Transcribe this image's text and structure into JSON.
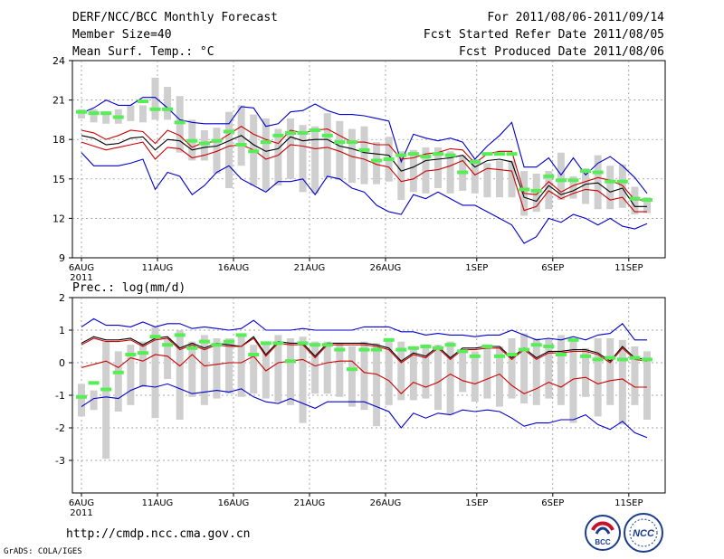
{
  "header": {
    "title": "DERF/NCC/BCC Monthly Forecast",
    "member_size": "Member Size=40",
    "variable1": "Mean Surf. Temp.: °C",
    "period": "For 2011/08/06-2011/09/14",
    "fcst_started": "Fcst Started Refer Date 2011/08/05",
    "fcst_produced": "Fcst Produced Date 2011/08/06"
  },
  "footer": {
    "url": "http://cmdp.ncc.cma.gov.cn",
    "grads": "GrADS: COLA/IGES",
    "logo1": "BCC",
    "logo2": "NCC"
  },
  "chart_data": [
    {
      "type": "line",
      "title": "Mean Surf. Temp.: °C",
      "x_tick_labels": [
        "6AUG",
        "11AUG",
        "16AUG",
        "21AUG",
        "26AUG",
        "1SEP",
        "6SEP",
        "11SEP"
      ],
      "x_tick_days": [
        0,
        5,
        10,
        15,
        20,
        26,
        31,
        36
      ],
      "year_label": "2011",
      "ylim": [
        9,
        24
      ],
      "y_ticks": [
        9,
        12,
        15,
        18,
        21,
        24
      ],
      "series": [
        {
          "name": "ensemble max",
          "color": "#0000cc",
          "values": [
            17.0,
            16.0,
            16.0,
            16.0,
            16.2,
            16.5,
            14.2,
            15.5,
            15.2,
            13.8,
            14.5,
            15.5,
            16.0,
            15.0,
            14.5,
            14.0,
            14.8,
            14.8,
            15.0,
            13.8,
            15.2,
            15.0,
            14.3,
            14.0,
            13.0,
            12.5,
            12.3,
            13.8,
            13.5,
            14.0,
            13.5,
            13.0,
            13.0,
            12.5,
            12.0,
            11.5,
            10.1,
            10.6,
            12.0,
            11.7,
            12.3,
            12.0,
            11.5,
            12.0,
            11.4,
            11.2,
            11.6
          ]
        },
        {
          "name": "ensemble min",
          "color": "#0000cc",
          "values": [
            20.0,
            20.4,
            21.0,
            20.6,
            20.6,
            21.2,
            21.2,
            20.4,
            19.5,
            19.3,
            19.2,
            19.2,
            19.2,
            20.5,
            20.4,
            19.0,
            19.2,
            20.1,
            20.2,
            20.7,
            20.2,
            19.9,
            19.9,
            19.8,
            19.6,
            19.4,
            16.3,
            18.4,
            18.1,
            17.9,
            18.1,
            17.8,
            16.5,
            17.5,
            18.3,
            19.3,
            15.9,
            15.9,
            16.6,
            15.3,
            16.6,
            15.3,
            16.2,
            16.7,
            16.0,
            15.1,
            13.9
          ]
        },
        {
          "name": "ensemble mean",
          "color": "#000000",
          "values": [
            18.3,
            18.1,
            17.6,
            17.7,
            18.1,
            18.2,
            17.2,
            18.0,
            17.9,
            17.2,
            17.4,
            17.5,
            17.9,
            18.3,
            17.6,
            17.1,
            17.3,
            18.2,
            17.9,
            18.0,
            18.0,
            17.5,
            17.3,
            17.0,
            16.9,
            16.8,
            15.6,
            15.9,
            16.4,
            16.5,
            16.6,
            16.8,
            15.9,
            16.4,
            16.5,
            16.3,
            13.6,
            13.3,
            14.5,
            13.8,
            14.1,
            14.6,
            14.7,
            14.0,
            14.3,
            12.9,
            12.9
          ]
        },
        {
          "name": "upper",
          "color": "#cc0000",
          "values": [
            18.7,
            18.5,
            18.0,
            18.3,
            18.7,
            18.6,
            17.7,
            18.7,
            18.3,
            17.4,
            17.8,
            17.8,
            18.4,
            19.0,
            18.4,
            18.0,
            17.7,
            18.7,
            18.5,
            18.7,
            18.8,
            18.3,
            17.8,
            17.8,
            17.6,
            17.6,
            16.5,
            16.6,
            16.9,
            17.0,
            17.3,
            17.2,
            16.2,
            16.9,
            17.1,
            17.1,
            13.9,
            13.8,
            14.8,
            14.0,
            14.5,
            14.8,
            15.1,
            14.9,
            14.5,
            13.4,
            13.4
          ]
        },
        {
          "name": "lower",
          "color": "#cc0000",
          "values": [
            17.8,
            17.5,
            17.2,
            17.4,
            17.6,
            17.8,
            16.5,
            17.4,
            17.3,
            16.6,
            16.8,
            17.1,
            17.5,
            17.6,
            17.2,
            16.5,
            16.8,
            17.6,
            17.5,
            17.3,
            17.4,
            17.1,
            16.7,
            16.5,
            16.1,
            15.9,
            14.8,
            15.0,
            15.6,
            15.7,
            16.0,
            16.4,
            15.3,
            15.8,
            15.7,
            15.6,
            12.6,
            12.9,
            14.1,
            13.5,
            13.9,
            14.2,
            14.1,
            13.4,
            13.6,
            12.5,
            12.5
          ]
        }
      ],
      "bars_low": [
        19.6,
        19.3,
        19.2,
        19.2,
        19.4,
        19.3,
        19.5,
        19.5,
        17.0,
        16.4,
        16.4,
        15.4,
        14.3,
        16.0,
        14.5,
        14.1,
        14.5,
        15.0,
        14.0,
        13.9,
        15.1,
        14.9,
        14.7,
        14.6,
        14.6,
        14.8,
        13.4,
        14.0,
        13.9,
        14.3,
        13.9,
        14.1,
        13.9,
        13.6,
        13.6,
        13.6,
        12.2,
        12.5,
        12.7,
        13.4,
        13.5,
        13.1,
        12.7,
        12.7,
        12.8,
        12.3,
        12.4
      ],
      "bars_high": [
        20.3,
        20.3,
        20.0,
        20.3,
        20.6,
        20.6,
        22.7,
        22.0,
        21.3,
        19.5,
        18.7,
        18.9,
        20.1,
        20.6,
        19.9,
        19.6,
        18.8,
        19.6,
        19.1,
        19.0,
        20.0,
        19.4,
        18.8,
        19.0,
        17.8,
        18.2,
        17.1,
        17.2,
        17.4,
        17.4,
        17.1,
        16.8,
        16.5,
        16.2,
        16.4,
        16.4,
        15.6,
        15.4,
        15.6,
        17.0,
        15.2,
        15.8,
        16.8,
        16.0,
        16.1,
        14.4,
        13.6
      ],
      "observed": [
        20.1,
        20.0,
        20.0,
        19.7,
        null,
        20.9,
        20.3,
        20.3,
        19.3,
        17.9,
        17.7,
        17.9,
        18.6,
        17.6,
        17.1,
        17.8,
        18.3,
        18.5,
        18.5,
        18.7,
        18.3,
        17.8,
        17.8,
        17.2,
        16.4,
        16.5,
        16.8,
        16.9,
        16.7,
        16.9,
        16.8,
        15.5,
        16.3,
        16.9,
        16.9,
        16.9,
        14.2,
        14.1,
        15.2,
        14.9,
        14.9,
        15.6,
        15.5,
        14.8,
        14.8,
        13.5,
        13.4
      ]
    },
    {
      "type": "line",
      "title": "Prec.: log(mm/d)",
      "x_tick_labels": [
        "6AUG",
        "11AUG",
        "16AUG",
        "21AUG",
        "26AUG",
        "1SEP",
        "6SEP",
        "11SEP"
      ],
      "x_tick_days": [
        0,
        5,
        10,
        15,
        20,
        26,
        31,
        36
      ],
      "year_label": "2011",
      "ylim": [
        -4,
        2
      ],
      "y_ticks": [
        -3,
        -2,
        -1,
        0,
        1,
        2
      ],
      "series": [
        {
          "name": "ensemble max",
          "color": "#0000cc",
          "values": [
            1.1,
            1.35,
            1.15,
            1.15,
            1.1,
            1.25,
            1.1,
            1.2,
            1.2,
            1.05,
            1.1,
            1.05,
            1.0,
            1.05,
            1.3,
            1.0,
            1.0,
            1.0,
            1.05,
            1.0,
            1.0,
            1.0,
            1.0,
            1.1,
            1.1,
            1.1,
            0.95,
            0.95,
            0.85,
            0.9,
            0.85,
            0.85,
            0.8,
            0.85,
            0.85,
            1.0,
            0.85,
            0.7,
            0.75,
            0.7,
            0.8,
            0.7,
            0.85,
            0.9,
            1.2,
            0.7,
            0.7
          ]
        },
        {
          "name": "ensemble mean",
          "color": "#000000",
          "values": [
            0.6,
            0.8,
            0.7,
            0.7,
            0.75,
            0.55,
            0.75,
            0.8,
            0.45,
            0.6,
            0.45,
            0.6,
            0.55,
            0.5,
            0.8,
            0.25,
            0.65,
            0.6,
            0.6,
            0.2,
            0.6,
            0.6,
            0.6,
            0.6,
            0.55,
            0.45,
            0.05,
            0.3,
            0.2,
            0.5,
            0.15,
            0.45,
            0.45,
            0.5,
            0.5,
            0.15,
            0.45,
            0.15,
            0.35,
            0.35,
            0.4,
            0.4,
            0.3,
            0.05,
            0.5,
            0.15,
            0.1
          ]
        },
        {
          "name": "upper",
          "color": "#cc0000",
          "values": [
            0.55,
            0.75,
            0.65,
            0.65,
            0.7,
            0.5,
            0.7,
            0.75,
            0.4,
            0.55,
            0.4,
            0.55,
            0.5,
            0.5,
            0.75,
            0.2,
            0.6,
            0.55,
            0.55,
            0.15,
            0.55,
            0.55,
            0.55,
            0.55,
            0.5,
            0.4,
            0.0,
            0.25,
            0.15,
            0.45,
            0.1,
            0.4,
            0.4,
            0.45,
            0.45,
            0.1,
            0.4,
            0.1,
            0.3,
            0.3,
            0.35,
            0.35,
            0.25,
            0.0,
            0.45,
            0.1,
            0.05
          ]
        },
        {
          "name": "lower",
          "color": "#cc0000",
          "values": [
            -0.15,
            -0.05,
            0.05,
            -0.15,
            0.15,
            0.05,
            0.25,
            0.2,
            -0.1,
            0.25,
            -0.1,
            -0.05,
            0.0,
            0.0,
            0.2,
            -0.25,
            0.0,
            0.05,
            0.1,
            -0.1,
            0.0,
            0.05,
            0.05,
            -0.3,
            -0.35,
            -0.55,
            -0.95,
            -0.6,
            -0.75,
            -0.6,
            -0.35,
            -0.55,
            -0.65,
            -0.5,
            -0.35,
            -0.7,
            -0.95,
            -0.8,
            -0.6,
            -0.75,
            -0.5,
            -0.45,
            -0.65,
            -0.55,
            -0.5,
            -0.75,
            -0.75
          ]
        },
        {
          "name": "ensemble min",
          "color": "#0000cc",
          "values": [
            -1.35,
            -1.1,
            -1.05,
            -1.1,
            -0.85,
            -0.7,
            -0.75,
            -0.65,
            -0.8,
            -0.95,
            -0.9,
            -0.85,
            -0.9,
            -0.8,
            -1.05,
            -1.2,
            -1.25,
            -1.1,
            -1.25,
            -1.4,
            -1.2,
            -1.2,
            -1.2,
            -1.2,
            -1.35,
            -1.5,
            -2.0,
            -1.55,
            -1.7,
            -1.55,
            -1.6,
            -1.45,
            -1.5,
            -1.45,
            -1.5,
            -1.7,
            -1.95,
            -1.85,
            -1.85,
            -1.75,
            -1.75,
            -1.6,
            -1.9,
            -2.05,
            -1.8,
            -2.15,
            -2.3
          ]
        },
        {
          "name": "observed",
          "color": "#55ee55",
          "values": [
            -1.05,
            -0.62,
            -0.82,
            -0.3,
            0.25,
            0.3,
            0.8,
            0.55,
            0.85,
            0.45,
            0.65,
            0.55,
            0.65,
            0.85,
            0.25,
            0.6,
            0.6,
            0.05,
            0.6,
            0.55,
            0.55,
            0.4,
            -0.2,
            0.4,
            0.4,
            0.7,
            0.4,
            0.45,
            0.5,
            0.45,
            0.55,
            0.35,
            0.2,
            0.5,
            0.2,
            0.25,
            0.4,
            0.55,
            0.5,
            0.25,
            0.7,
            0.2,
            0.1,
            0.15,
            0.1,
            0.15,
            0.1
          ]
        }
      ],
      "bars_low": [
        -1.65,
        -1.45,
        -2.95,
        -1.5,
        -1.3,
        -0.75,
        -1.7,
        -0.5,
        -1.75,
        -1.05,
        -1.3,
        -1.1,
        -0.95,
        -1.05,
        -0.95,
        -1.1,
        -1.2,
        -1.3,
        -1.85,
        -0.95,
        -0.95,
        -1.05,
        -1.35,
        -1.45,
        -1.95,
        -1.3,
        -1.15,
        -1.15,
        -1.1,
        -1.45,
        -1.6,
        -0.9,
        -1.2,
        -1.1,
        -1.35,
        -1.1,
        -1.25,
        -1.3,
        -1.1,
        -1.3,
        -1.85,
        -1.05,
        -1.65,
        -1.3,
        -1.9,
        -1.3,
        -1.75
      ],
      "bars_high": [
        -0.65,
        -0.85,
        0.65,
        0.35,
        0.55,
        0.65,
        1.1,
        0.75,
        1.0,
        0.65,
        0.85,
        0.75,
        0.75,
        0.85,
        0.55,
        0.65,
        0.85,
        0.75,
        0.8,
        0.65,
        0.65,
        0.6,
        0.5,
        0.65,
        0.6,
        0.75,
        0.65,
        0.45,
        0.5,
        0.55,
        0.65,
        0.4,
        0.35,
        0.55,
        0.5,
        0.75,
        0.9,
        0.75,
        0.75,
        0.85,
        0.75,
        0.45,
        0.75,
        0.75,
        0.7,
        0.5,
        0.35
      ]
    }
  ]
}
